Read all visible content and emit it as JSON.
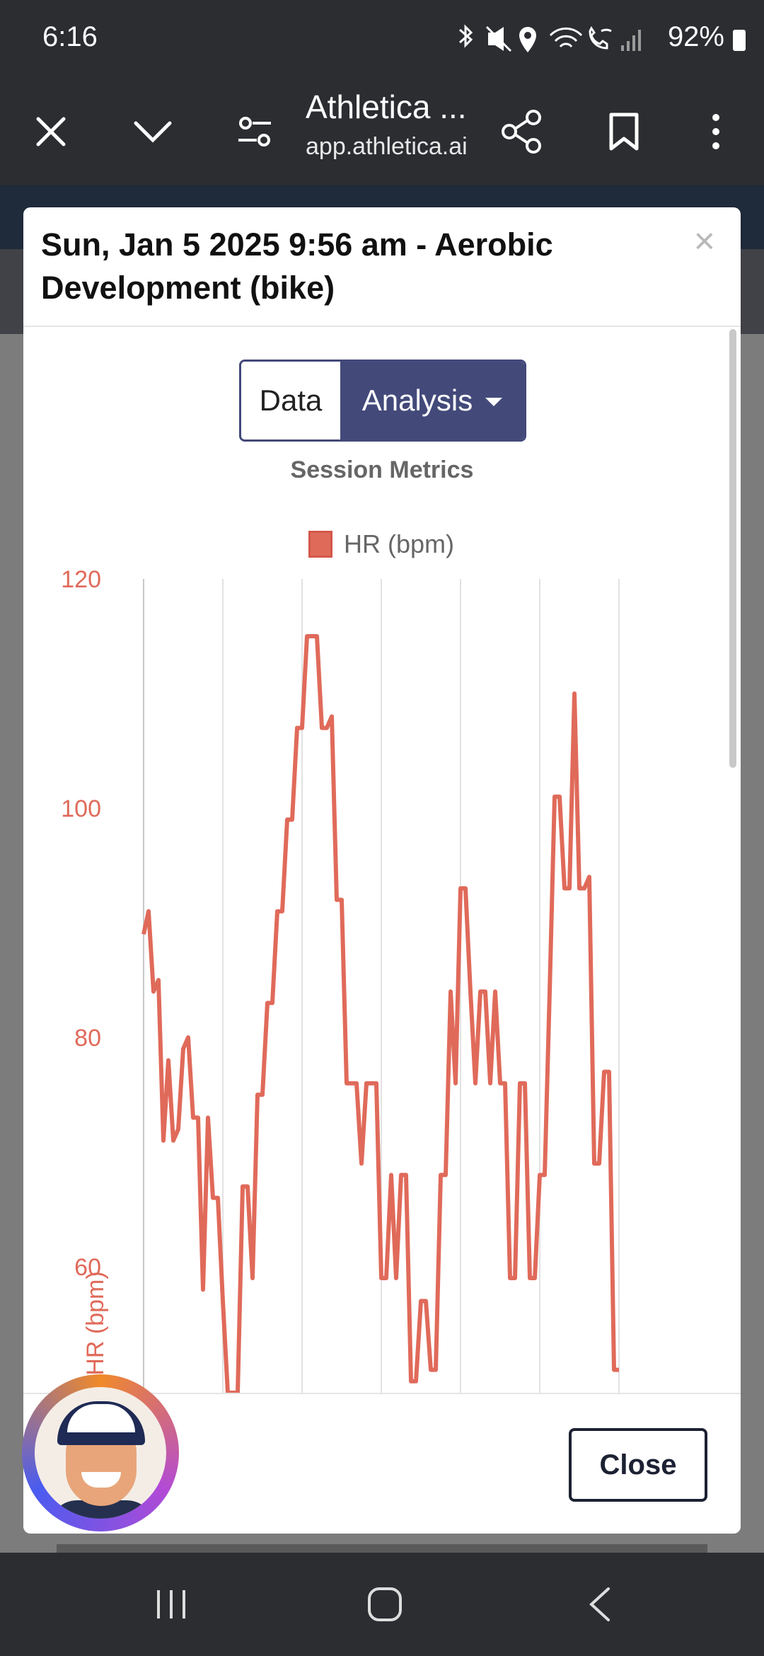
{
  "status_bar": {
    "time": "6:16",
    "icons": [
      "bluetooth-icon",
      "mute-icon",
      "location-icon",
      "wifi-icon",
      "wifi-call-icon",
      "signal-icon"
    ],
    "battery": "92%"
  },
  "browser": {
    "title": "Athletica ...",
    "url": "app.athletica.ai",
    "icons": [
      "close-icon",
      "chevron-down-icon",
      "tune-icon",
      "share-icon",
      "bookmark-icon",
      "more-icon"
    ]
  },
  "modal": {
    "title": "Sun, Jan 5 2025 9:56 am - Aerobic Development (bike)",
    "tabs": {
      "data": "Data",
      "analysis": "Analysis"
    },
    "section_title": "Session Metrics",
    "close_label": "Close",
    "close_x": "×"
  },
  "chart_data": {
    "type": "line",
    "legend": [
      "HR (bpm)"
    ],
    "ylabel": "HR (bpm)",
    "yticks": [
      60,
      80,
      100,
      120
    ],
    "ylim": [
      49,
      120
    ],
    "grid": "vertical",
    "series": [
      {
        "name": "HR (bpm)",
        "color": "#e06a5a",
        "values": [
          89,
          91,
          84,
          85,
          71,
          78,
          71,
          72,
          79,
          80,
          73,
          73,
          58,
          73,
          66,
          66,
          57,
          49,
          49,
          49,
          67,
          67,
          59,
          75,
          75,
          83,
          83,
          91,
          91,
          99,
          99,
          107,
          107,
          115,
          115,
          115,
          107,
          107,
          108,
          92,
          92,
          76,
          76,
          76,
          69,
          76,
          76,
          76,
          59,
          59,
          68,
          59,
          68,
          68,
          50,
          50,
          57,
          57,
          51,
          51,
          68,
          68,
          84,
          76,
          93,
          93,
          84,
          76,
          84,
          84,
          76,
          84,
          76,
          76,
          59,
          59,
          76,
          76,
          59,
          59,
          68,
          68,
          84,
          101,
          101,
          93,
          93,
          110,
          93,
          93,
          94,
          69,
          69,
          77,
          77,
          51,
          51
        ]
      }
    ]
  }
}
